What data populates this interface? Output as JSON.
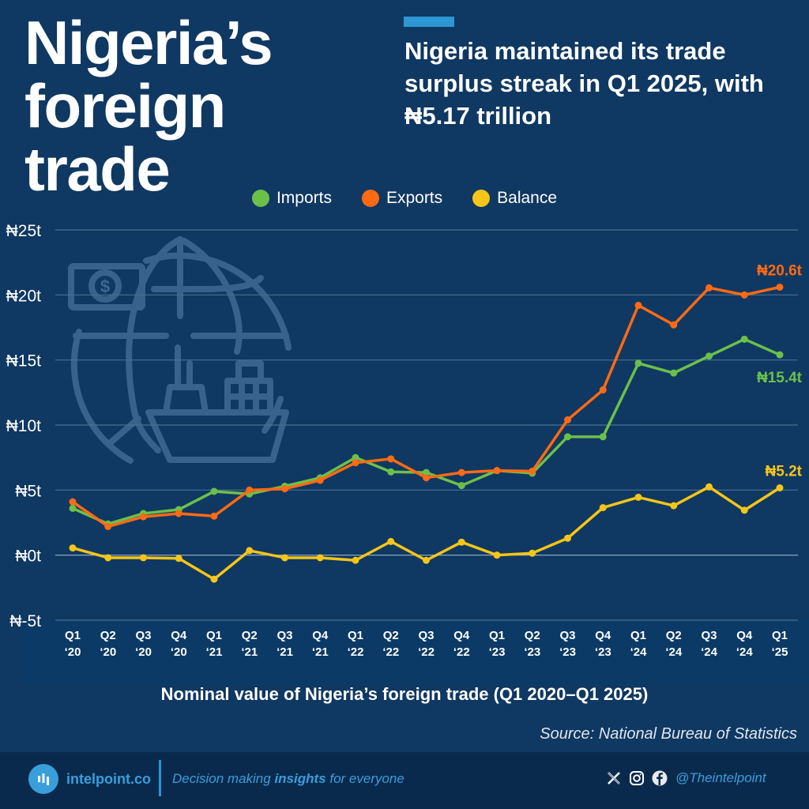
{
  "header": {
    "title_line1": "Nigeria’s",
    "title_line2": "foreign trade",
    "subtitle": "Nigeria maintained its trade surplus streak in Q1 2025, with ₦5.17 trillion",
    "accent_color": "#2e96d4"
  },
  "legend": [
    {
      "label": "Imports",
      "color": "#6cc04a"
    },
    {
      "label": "Exports",
      "color": "#ff6a13"
    },
    {
      "label": "Balance",
      "color": "#f5c518"
    }
  ],
  "chart_data": {
    "type": "line",
    "title": "Nominal value of Nigeria’s foreign trade (Q1 2020–Q1 2025)",
    "xlabel": "",
    "ylabel": "",
    "ylim": [
      -5,
      25
    ],
    "yticks": [
      -5,
      0,
      5,
      10,
      15,
      20,
      25
    ],
    "ytick_labels": [
      "₦-5t",
      "₦0t",
      "₦5t",
      "₦10t",
      "₦15t",
      "₦20t",
      "₦25t"
    ],
    "grid": true,
    "legend_position": "top-center",
    "categories": [
      [
        "Q1",
        "‘20"
      ],
      [
        "Q2",
        "‘20"
      ],
      [
        "Q3",
        "‘20"
      ],
      [
        "Q4",
        "‘20"
      ],
      [
        "Q1",
        "‘21"
      ],
      [
        "Q2",
        "‘21"
      ],
      [
        "Q3",
        "‘21"
      ],
      [
        "Q4",
        "‘21"
      ],
      [
        "Q1",
        "‘22"
      ],
      [
        "Q2",
        "‘22"
      ],
      [
        "Q3",
        "‘22"
      ],
      [
        "Q4",
        "‘22"
      ],
      [
        "Q1",
        "‘23"
      ],
      [
        "Q2",
        "‘23"
      ],
      [
        "Q3",
        "‘23"
      ],
      [
        "Q4",
        "‘23"
      ],
      [
        "Q1",
        "‘24"
      ],
      [
        "Q2",
        "‘24"
      ],
      [
        "Q3",
        "‘24"
      ],
      [
        "Q4",
        "‘24"
      ],
      [
        "Q1",
        "‘25"
      ]
    ],
    "series": [
      {
        "name": "Imports",
        "color": "#6cc04a",
        "end_label": "₦15.4t",
        "values": [
          3.6,
          2.4,
          3.2,
          3.5,
          4.9,
          4.7,
          5.3,
          5.95,
          7.5,
          6.4,
          6.35,
          5.35,
          6.5,
          6.3,
          9.1,
          9.1,
          14.75,
          14.0,
          15.3,
          16.6,
          15.4
        ]
      },
      {
        "name": "Exports",
        "color": "#ff6a13",
        "end_label": "₦20.6t",
        "values": [
          4.1,
          2.2,
          2.95,
          3.2,
          3.0,
          5.0,
          5.1,
          5.75,
          7.1,
          7.4,
          5.95,
          6.35,
          6.5,
          6.45,
          10.4,
          12.7,
          19.2,
          17.7,
          20.55,
          20.0,
          20.6
        ]
      },
      {
        "name": "Balance",
        "color": "#f5c518",
        "end_label": "₦5.2t",
        "values": [
          0.55,
          -0.2,
          -0.2,
          -0.25,
          -1.85,
          0.35,
          -0.2,
          -0.2,
          -0.4,
          1.05,
          -0.4,
          1.0,
          0.0,
          0.15,
          1.3,
          3.65,
          4.45,
          3.8,
          5.25,
          3.45,
          5.17
        ]
      }
    ]
  },
  "caption": "Nominal value of Nigeria’s foreign trade (Q1 2020–Q1 2025)",
  "source": "Source: National Bureau of Statistics",
  "footer": {
    "brand": "intelpoint.co",
    "tagline_pre": "Decision making ",
    "tagline_bold": "insights",
    "tagline_post": " for everyone",
    "handle": "@Theintelpoint",
    "social_icons": [
      "x-icon",
      "instagram-icon",
      "facebook-icon"
    ]
  }
}
